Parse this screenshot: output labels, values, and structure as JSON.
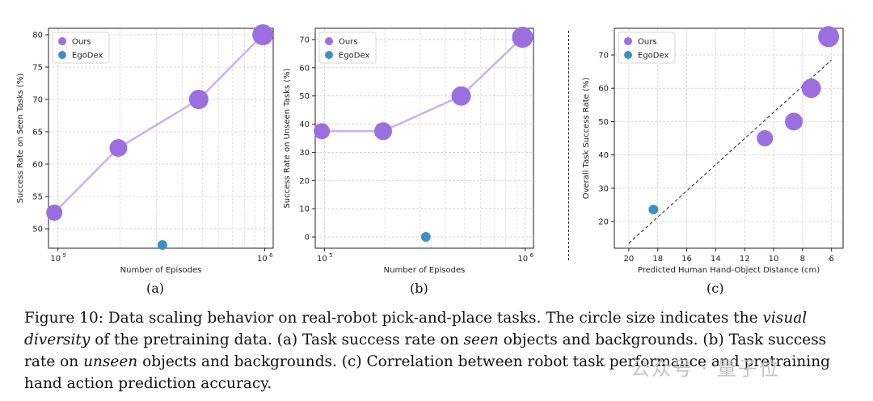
{
  "chart_data": [
    {
      "type": "scatter",
      "panel": "(a)",
      "xlabel": "Number of Episodes",
      "ylabel": "Success Rate on Seen Tasks (%)",
      "xscale": "log",
      "xlim": [
        90000,
        1100000
      ],
      "ylim": [
        47,
        81
      ],
      "xticks": [
        {
          "v": 100000,
          "base": "10",
          "exp": "5"
        },
        {
          "v": 1000000,
          "base": "10",
          "exp": "6"
        }
      ],
      "yticks": [
        50,
        55,
        60,
        65,
        70,
        75,
        80
      ],
      "legend": "top-left",
      "grid": true,
      "series": [
        {
          "name": "Ours",
          "color": "#9b6fdf",
          "connect": true,
          "x": [
            96000,
            196000,
            480000,
            980000
          ],
          "y": [
            52.5,
            62.5,
            70,
            80
          ],
          "size": [
            10,
            11,
            12,
            13
          ]
        },
        {
          "name": "EgoDex",
          "color": "#3d8fc8",
          "connect": false,
          "x": [
            320000
          ],
          "y": [
            47.5
          ],
          "size": [
            6
          ]
        }
      ]
    },
    {
      "type": "scatter",
      "panel": "(b)",
      "xlabel": "Number of Episodes",
      "ylabel": "Success Rate on Unseen Tasks (%)",
      "xscale": "log",
      "xlim": [
        90000,
        1100000
      ],
      "ylim": [
        -4,
        74
      ],
      "xticks": [
        {
          "v": 100000,
          "base": "10",
          "exp": "5"
        },
        {
          "v": 1000000,
          "base": "10",
          "exp": "6"
        }
      ],
      "yticks": [
        0,
        10,
        20,
        30,
        40,
        50,
        60,
        70
      ],
      "legend": "top-left",
      "grid": true,
      "series": [
        {
          "name": "Ours",
          "color": "#9b6fdf",
          "connect": true,
          "x": [
            97000,
            196000,
            480000,
            970000
          ],
          "y": [
            37.5,
            37.5,
            50,
            70.8
          ],
          "size": [
            10,
            11,
            12,
            13
          ]
        },
        {
          "name": "EgoDex",
          "color": "#3d8fc8",
          "connect": false,
          "x": [
            320000
          ],
          "y": [
            0
          ],
          "size": [
            6
          ]
        }
      ]
    },
    {
      "type": "scatter",
      "panel": "(c)",
      "xlabel": "Predicted Human Hand-Object Distance (cm)",
      "ylabel": "Overall Task Success Rate (%)",
      "xscale": "linear-reversed",
      "xlim": [
        21,
        5.2
      ],
      "ylim": [
        12,
        78
      ],
      "xticks": [
        20,
        18,
        16,
        14,
        12,
        10,
        8,
        6
      ],
      "yticks": [
        20,
        30,
        40,
        50,
        60,
        70
      ],
      "legend": "top-left",
      "grid": true,
      "fit_line": {
        "x": [
          20,
          6
        ],
        "y": [
          13.5,
          68.5
        ]
      },
      "series": [
        {
          "name": "Ours",
          "color": "#9b6fdf",
          "connect": false,
          "x": [
            10.6,
            8.6,
            7.4,
            6.2
          ],
          "y": [
            45,
            50,
            60,
            75.5
          ],
          "size": [
            10,
            11,
            12,
            13
          ]
        },
        {
          "name": "EgoDex",
          "color": "#3d8fc8",
          "connect": false,
          "x": [
            18.3
          ],
          "y": [
            23.6
          ],
          "size": [
            6
          ]
        }
      ]
    }
  ],
  "subcaptions": [
    "(a)",
    "(b)",
    "(c)"
  ],
  "caption": {
    "p1": "Figure 10: Data scaling behavior on real-robot pick-and-place tasks. The circle size indicates the ",
    "e1": "visual diversity",
    "p2": " of the pretraining data. (a) Task success rate on ",
    "e2": "seen",
    "p3": " objects and backgrounds. (b) Task success rate on ",
    "e3": "unseen",
    "p4": " objects and backgrounds. (c) Correlation between robot task performance and pretraining hand action prediction accuracy."
  },
  "watermark": "公众号 · 量子位"
}
